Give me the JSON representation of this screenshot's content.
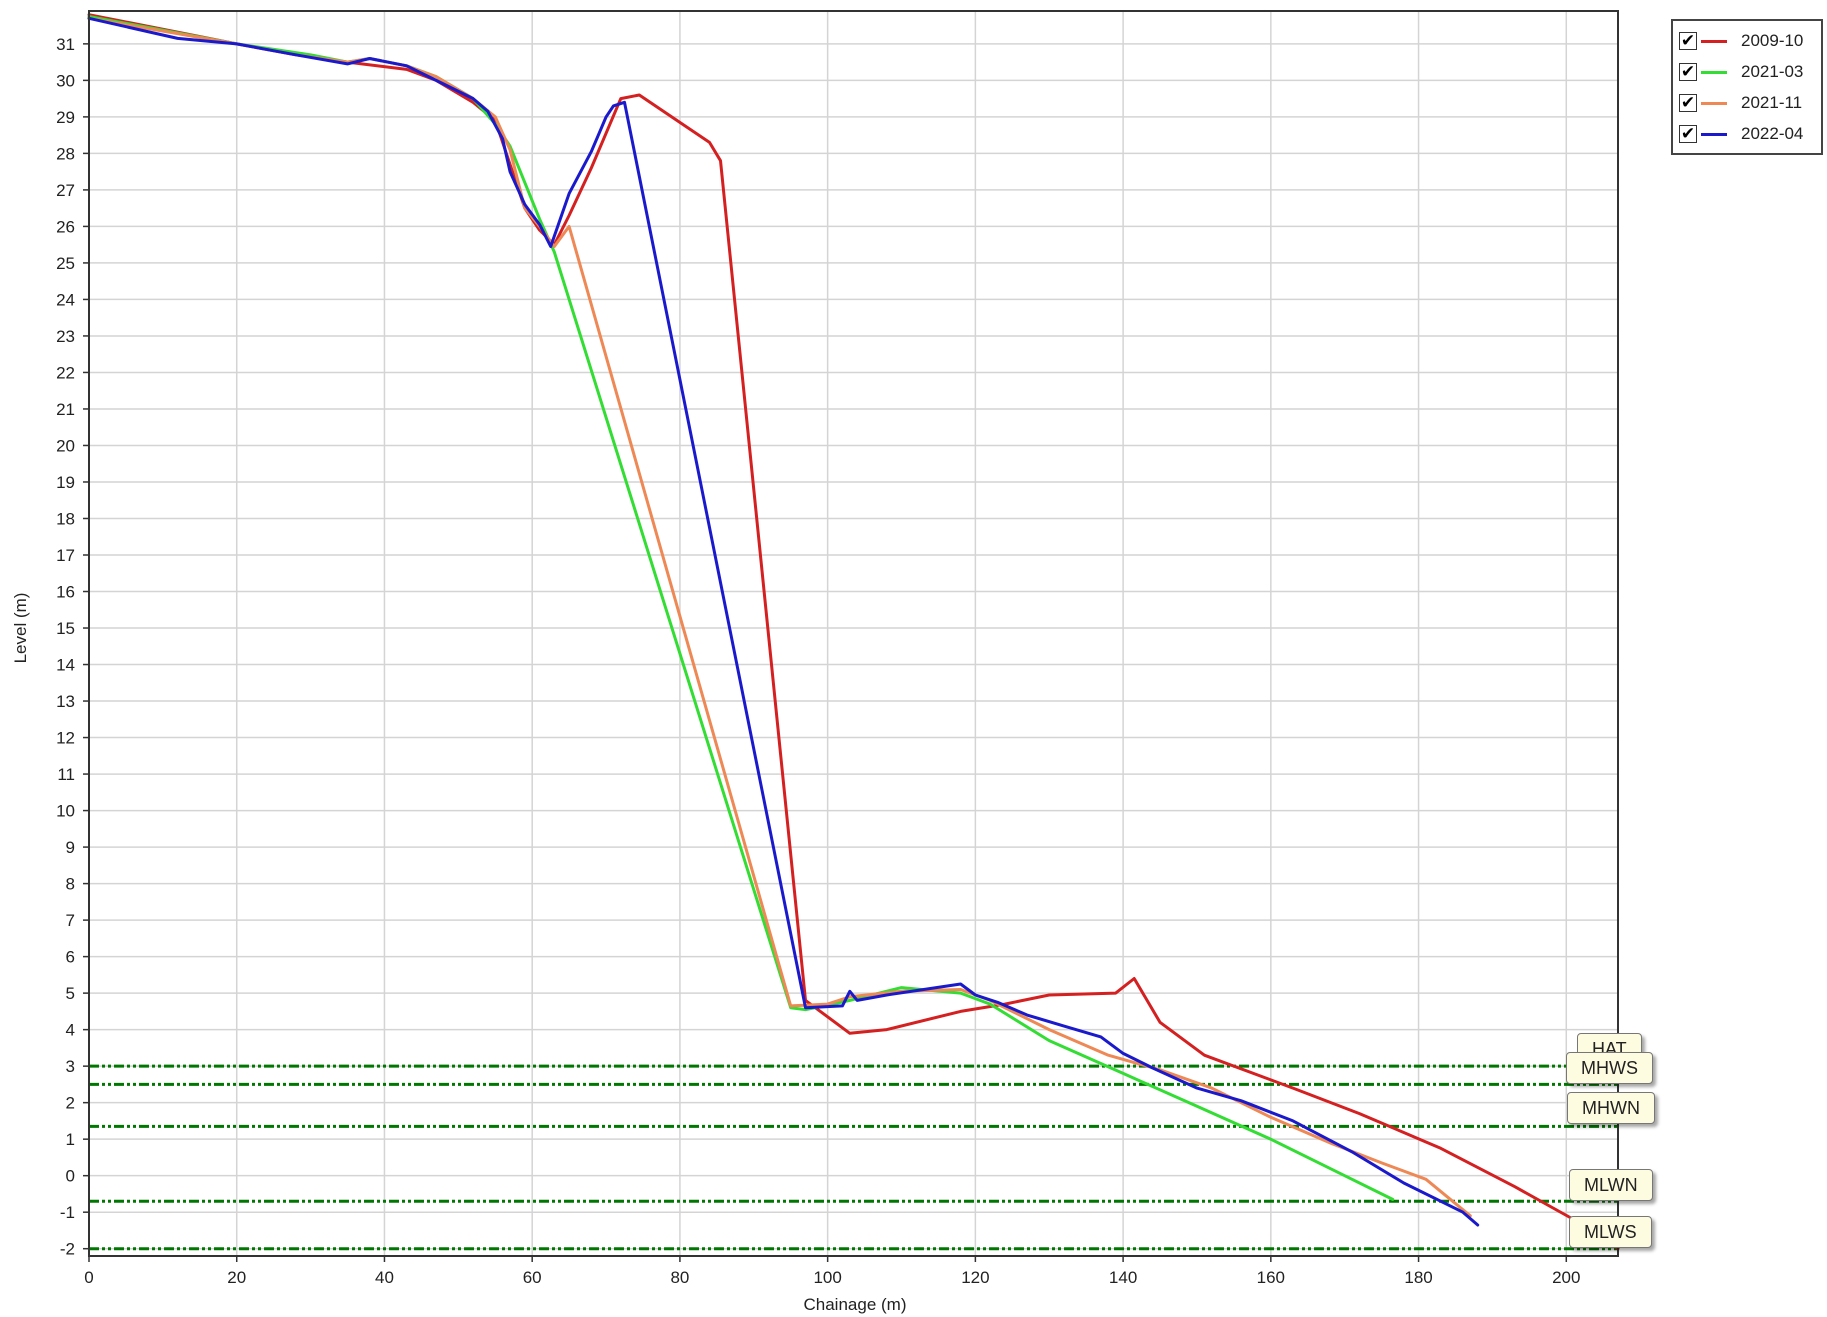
{
  "chart_data": {
    "type": "line",
    "xlabel": "Chainage (m)",
    "ylabel": "Level (m)",
    "xlim": [
      0,
      207
    ],
    "ylim": [
      -2.2,
      31.9
    ],
    "xticks": [
      0,
      20,
      40,
      60,
      80,
      100,
      120,
      140,
      160,
      180,
      200
    ],
    "yticks": [
      -2,
      -1,
      0,
      1,
      2,
      3,
      4,
      5,
      6,
      7,
      8,
      9,
      10,
      11,
      12,
      13,
      14,
      15,
      16,
      17,
      18,
      19,
      20,
      21,
      22,
      23,
      24,
      25,
      26,
      27,
      28,
      29,
      30,
      31
    ],
    "grid": true,
    "legend_placement": "top-right outside",
    "series": [
      {
        "name": "2009-10",
        "color": "#d42020",
        "checked": true,
        "points": [
          [
            0,
            31.8
          ],
          [
            20,
            31.0
          ],
          [
            28,
            30.7
          ],
          [
            35,
            30.5
          ],
          [
            43,
            30.3
          ],
          [
            47,
            30.0
          ],
          [
            52,
            29.4
          ],
          [
            55,
            28.9
          ],
          [
            57,
            27.7
          ],
          [
            59,
            26.5
          ],
          [
            61,
            25.9
          ],
          [
            63,
            25.5
          ],
          [
            65,
            26.3
          ],
          [
            68,
            27.6
          ],
          [
            72,
            29.5
          ],
          [
            74.5,
            29.6
          ],
          [
            84,
            28.3
          ],
          [
            85.5,
            27.8
          ],
          [
            97,
            4.8
          ],
          [
            103,
            3.9
          ],
          [
            108,
            4.0
          ],
          [
            118,
            4.5
          ],
          [
            124,
            4.7
          ],
          [
            130,
            4.95
          ],
          [
            139,
            5.0
          ],
          [
            141.5,
            5.4
          ],
          [
            145,
            4.2
          ],
          [
            151,
            3.3
          ],
          [
            163,
            2.4
          ],
          [
            172,
            1.7
          ],
          [
            183,
            0.75
          ],
          [
            193,
            -0.3
          ],
          [
            201,
            -1.2
          ],
          [
            207,
            -2.0
          ]
        ]
      },
      {
        "name": "2021-03",
        "color": "#33dd33",
        "checked": true,
        "points": [
          [
            0,
            31.75
          ],
          [
            20,
            31.0
          ],
          [
            30,
            30.7
          ],
          [
            35,
            30.5
          ],
          [
            38,
            30.6
          ],
          [
            43,
            30.4
          ],
          [
            47,
            30.1
          ],
          [
            52,
            29.5
          ],
          [
            55,
            28.8
          ],
          [
            57,
            28.2
          ],
          [
            59,
            27.2
          ],
          [
            61,
            26.2
          ],
          [
            63,
            25.3
          ],
          [
            95,
            4.6
          ],
          [
            97,
            4.55
          ],
          [
            103,
            4.8
          ],
          [
            110,
            5.15
          ],
          [
            118,
            5.0
          ],
          [
            122,
            4.7
          ],
          [
            130,
            3.7
          ],
          [
            140,
            2.8
          ],
          [
            150,
            1.9
          ],
          [
            160,
            1.0
          ],
          [
            170,
            0.0
          ],
          [
            176.5,
            -0.65
          ]
        ]
      },
      {
        "name": "2021-11",
        "color": "#ee8855",
        "checked": true,
        "points": [
          [
            0,
            31.7
          ],
          [
            20,
            31.0
          ],
          [
            28,
            30.7
          ],
          [
            35,
            30.5
          ],
          [
            38,
            30.6
          ],
          [
            43,
            30.4
          ],
          [
            47,
            30.1
          ],
          [
            52,
            29.5
          ],
          [
            55,
            29.0
          ],
          [
            57,
            28.1
          ],
          [
            59,
            26.5
          ],
          [
            61,
            26.0
          ],
          [
            63,
            25.45
          ],
          [
            65,
            26.0
          ],
          [
            95,
            4.65
          ],
          [
            100,
            4.7
          ],
          [
            103,
            4.9
          ],
          [
            110,
            5.05
          ],
          [
            118,
            5.1
          ],
          [
            122,
            4.8
          ],
          [
            130,
            4.0
          ],
          [
            138,
            3.3
          ],
          [
            145,
            2.9
          ],
          [
            152,
            2.4
          ],
          [
            160,
            1.6
          ],
          [
            168,
            0.9
          ],
          [
            175,
            0.35
          ],
          [
            181,
            -0.1
          ],
          [
            187,
            -1.1
          ]
        ]
      },
      {
        "name": "2022-04",
        "color": "#1a1acc",
        "checked": true,
        "points": [
          [
            0,
            31.7
          ],
          [
            12,
            31.15
          ],
          [
            20,
            31.0
          ],
          [
            28,
            30.7
          ],
          [
            35,
            30.45
          ],
          [
            38,
            30.6
          ],
          [
            43,
            30.4
          ],
          [
            45,
            30.2
          ],
          [
            48,
            29.9
          ],
          [
            52,
            29.5
          ],
          [
            54,
            29.15
          ],
          [
            56,
            28.4
          ],
          [
            57,
            27.5
          ],
          [
            59,
            26.6
          ],
          [
            61,
            26.05
          ],
          [
            62.5,
            25.45
          ],
          [
            65,
            26.9
          ],
          [
            68,
            28.05
          ],
          [
            70,
            29.0
          ],
          [
            71,
            29.3
          ],
          [
            72.5,
            29.4
          ],
          [
            97,
            4.6
          ],
          [
            102,
            4.65
          ],
          [
            103,
            5.05
          ],
          [
            104,
            4.8
          ],
          [
            108,
            4.95
          ],
          [
            113,
            5.1
          ],
          [
            118,
            5.25
          ],
          [
            120,
            4.95
          ],
          [
            123,
            4.75
          ],
          [
            127,
            4.4
          ],
          [
            132,
            4.1
          ],
          [
            137,
            3.8
          ],
          [
            140,
            3.35
          ],
          [
            144,
            2.95
          ],
          [
            150,
            2.4
          ],
          [
            156,
            2.05
          ],
          [
            163,
            1.5
          ],
          [
            171,
            0.65
          ],
          [
            178,
            -0.2
          ],
          [
            186,
            -1.0
          ],
          [
            188,
            -1.35
          ]
        ]
      }
    ],
    "reference_lines": [
      {
        "label": "HAT",
        "level": 3.0,
        "color": "#007700"
      },
      {
        "label": "MHWS",
        "level": 2.5,
        "color": "#007700"
      },
      {
        "label": "MHWN",
        "level": 1.35,
        "color": "#007700"
      },
      {
        "label": "MLWN",
        "level": -0.7,
        "color": "#007700"
      },
      {
        "label": "MLWS",
        "level": -2.0,
        "color": "#007700"
      }
    ]
  }
}
